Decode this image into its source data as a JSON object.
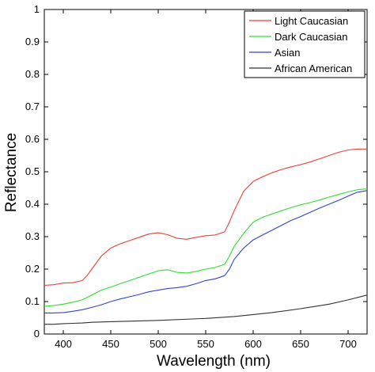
{
  "chart_data": {
    "type": "line",
    "title": "",
    "xlabel": "Wavelength (nm)",
    "ylabel": "Reflectance",
    "xlim": [
      380,
      720
    ],
    "ylim": [
      0,
      1
    ],
    "xticks": [
      400,
      450,
      500,
      550,
      600,
      650,
      700
    ],
    "yticks": [
      0,
      0.1,
      0.2,
      0.3,
      0.4,
      0.5,
      0.6,
      0.7,
      0.8,
      0.9,
      1
    ],
    "grid": false,
    "legend_position": "top-right",
    "series": [
      {
        "name": "Light Caucasian",
        "color": "#e8403a",
        "x": [
          380,
          390,
          400,
          410,
          420,
          425,
          430,
          440,
          450,
          460,
          470,
          480,
          490,
          500,
          510,
          520,
          530,
          540,
          550,
          560,
          570,
          575,
          580,
          590,
          600,
          610,
          620,
          630,
          640,
          650,
          660,
          670,
          680,
          690,
          700,
          710,
          720
        ],
        "y": [
          0.15,
          0.152,
          0.157,
          0.158,
          0.165,
          0.18,
          0.2,
          0.24,
          0.265,
          0.278,
          0.288,
          0.298,
          0.308,
          0.312,
          0.306,
          0.295,
          0.292,
          0.298,
          0.303,
          0.305,
          0.315,
          0.345,
          0.38,
          0.44,
          0.47,
          0.485,
          0.497,
          0.507,
          0.515,
          0.522,
          0.53,
          0.54,
          0.55,
          0.56,
          0.567,
          0.57,
          0.57
        ]
      },
      {
        "name": "Dark Caucasian",
        "color": "#33dd33",
        "x": [
          380,
          390,
          400,
          410,
          420,
          430,
          440,
          450,
          460,
          470,
          480,
          490,
          500,
          510,
          520,
          530,
          540,
          550,
          560,
          570,
          575,
          580,
          590,
          600,
          610,
          620,
          630,
          640,
          650,
          660,
          670,
          680,
          690,
          700,
          710,
          720
        ],
        "y": [
          0.085,
          0.088,
          0.092,
          0.098,
          0.105,
          0.12,
          0.135,
          0.145,
          0.155,
          0.165,
          0.175,
          0.185,
          0.195,
          0.198,
          0.19,
          0.188,
          0.193,
          0.2,
          0.205,
          0.215,
          0.24,
          0.27,
          0.31,
          0.345,
          0.36,
          0.37,
          0.38,
          0.39,
          0.398,
          0.405,
          0.413,
          0.422,
          0.43,
          0.438,
          0.445,
          0.447
        ]
      },
      {
        "name": "Asian",
        "color": "#3344cc",
        "x": [
          380,
          390,
          400,
          410,
          420,
          430,
          440,
          450,
          460,
          470,
          480,
          490,
          500,
          510,
          520,
          530,
          540,
          550,
          560,
          570,
          575,
          580,
          590,
          600,
          610,
          620,
          630,
          640,
          650,
          660,
          670,
          680,
          690,
          700,
          710,
          720
        ],
        "y": [
          0.065,
          0.065,
          0.066,
          0.07,
          0.075,
          0.082,
          0.09,
          0.1,
          0.108,
          0.115,
          0.122,
          0.13,
          0.135,
          0.14,
          0.143,
          0.147,
          0.155,
          0.165,
          0.17,
          0.18,
          0.2,
          0.23,
          0.265,
          0.29,
          0.305,
          0.32,
          0.335,
          0.35,
          0.362,
          0.375,
          0.388,
          0.4,
          0.412,
          0.425,
          0.437,
          0.442
        ]
      },
      {
        "name": "African American",
        "color": "#333333",
        "x": [
          380,
          390,
          400,
          410,
          420,
          430,
          450,
          500,
          550,
          580,
          600,
          620,
          650,
          680,
          700,
          720
        ],
        "y": [
          0.03,
          0.03,
          0.032,
          0.033,
          0.034,
          0.036,
          0.038,
          0.042,
          0.048,
          0.054,
          0.06,
          0.066,
          0.078,
          0.092,
          0.105,
          0.12
        ]
      }
    ]
  }
}
